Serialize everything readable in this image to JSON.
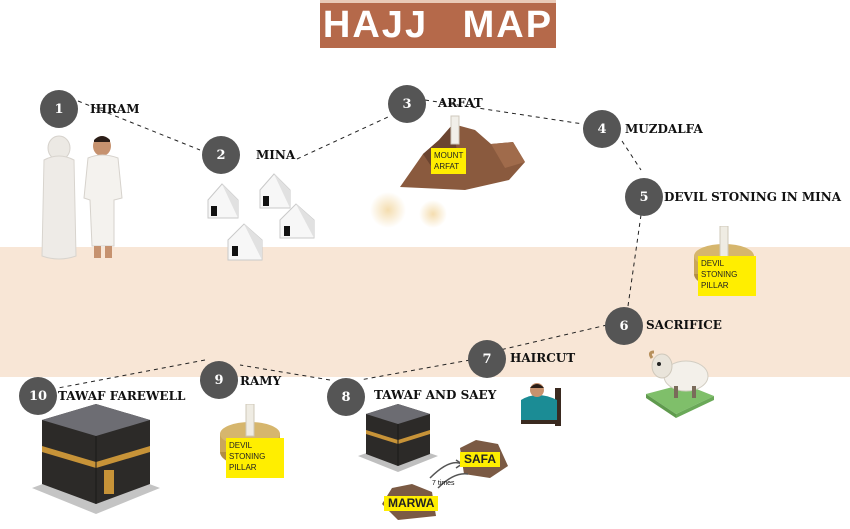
{
  "title": "HAJJ  MAP",
  "steps": [
    {
      "num": "1",
      "label": "IHRAM"
    },
    {
      "num": "2",
      "label": "MINA"
    },
    {
      "num": "3",
      "label": "ARFAT"
    },
    {
      "num": "4",
      "label": "MUZDALFA"
    },
    {
      "num": "5",
      "label": "DEVIL STONING IN MINA"
    },
    {
      "num": "6",
      "label": "SACRIFICE"
    },
    {
      "num": "7",
      "label": "HAIRCUT"
    },
    {
      "num": "8",
      "label": "TAWAF AND SAEY"
    },
    {
      "num": "9",
      "label": "RAMY"
    },
    {
      "num": "10",
      "label": "TAWAF FAREWELL"
    }
  ],
  "tags": {
    "mount_line1": "MOUNT",
    "mount_line2": "ARFAT",
    "pillar_line1": "DEVIL",
    "pillar_line2": "STONING",
    "pillar_line3": "PILLAR",
    "safa": "SAFA",
    "marwa": "MARWA",
    "seven_times": "7 times"
  },
  "colors": {
    "band": "#f8e6d6",
    "title_bg": "#b5694a",
    "marker": "#555555",
    "tag": "#ffee00"
  },
  "icons": [
    "pilgrims-illustration",
    "tents-illustration",
    "mountain-illustration",
    "pillar-illustration",
    "sheep-illustration",
    "barber-illustration",
    "kaaba-illustration",
    "safa-marwa-illustration"
  ]
}
